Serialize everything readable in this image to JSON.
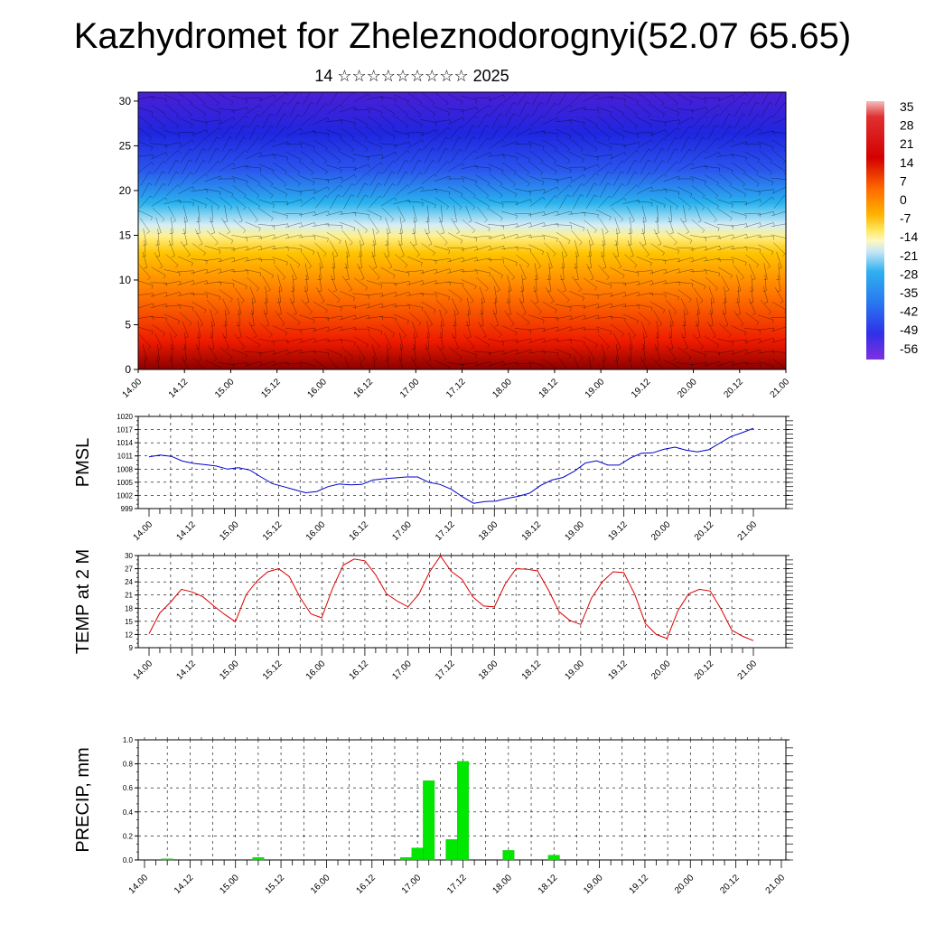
{
  "title": "Kazhydromet for Zheleznodorognyi(52.07 65.65)",
  "subtitle": "14 ☆☆☆☆☆☆☆☆☆ 2025",
  "time_labels": [
    "14.00",
    "14.12",
    "15.00",
    "15.12",
    "16.00",
    "16.12",
    "17.00",
    "17.12",
    "18.00",
    "18.12",
    "19.00",
    "19.12",
    "20.00",
    "20.12",
    "21.00"
  ],
  "chart_data": [
    {
      "type": "heatmap",
      "name": "vertical-cross-section",
      "x_ticks": [
        "14.00",
        "14.12",
        "15.00",
        "15.12",
        "16.00",
        "16.12",
        "17.00",
        "17.12",
        "18.00",
        "18.12",
        "19.00",
        "19.12",
        "20.00",
        "20.12",
        "21.00"
      ],
      "y_ticks": [
        0,
        5,
        10,
        15,
        20,
        25,
        30
      ],
      "ylim": [
        0,
        31
      ],
      "colorbar_labels": [
        "35",
        "28",
        "21",
        "14",
        "7",
        "0",
        "-7",
        "-14",
        "-21",
        "-28",
        "-35",
        "-42",
        "-49",
        "-56"
      ],
      "colorbar_range": [
        -60,
        38
      ],
      "note": "temperature colour field with wind barbs"
    },
    {
      "type": "line",
      "name": "pmsl",
      "ylabel": "PMSL",
      "ylim": [
        999,
        1020
      ],
      "y_ticks": [
        999,
        1002,
        1005,
        1008,
        1011,
        1014,
        1017,
        1020
      ],
      "color": "#0000cc",
      "values": [
        1010.8,
        1011.2,
        1010.9,
        1009.8,
        1009.3,
        1009.0,
        1008.7,
        1008.0,
        1008.3,
        1007.8,
        1006.2,
        1004.7,
        1004.0,
        1003.3,
        1002.6,
        1002.9,
        1004.0,
        1004.6,
        1004.4,
        1004.5,
        1005.5,
        1005.8,
        1006.0,
        1006.2,
        1006.2,
        1005.0,
        1004.5,
        1003.4,
        1001.7,
        1000.2,
        1000.6,
        1000.7,
        1001.3,
        1001.8,
        1002.5,
        1004.3,
        1005.5,
        1006.1,
        1007.5,
        1009.4,
        1009.9,
        1008.9,
        1008.9,
        1010.5,
        1011.6,
        1011.7,
        1012.5,
        1013.0,
        1012.3,
        1011.9,
        1012.4,
        1013.9,
        1015.4,
        1016.3,
        1017.3
      ],
      "x_range": [
        0,
        168
      ]
    },
    {
      "type": "line",
      "name": "temp-2m",
      "ylabel": "TEMP at 2 M",
      "ylim": [
        9,
        30
      ],
      "y_ticks": [
        9,
        12,
        15,
        18,
        21,
        24,
        27,
        30
      ],
      "color": "#dd0000",
      "values": [
        12.2,
        16.9,
        19.4,
        22.3,
        21.7,
        20.6,
        18.5,
        16.6,
        14.9,
        21.1,
        24.2,
        26.3,
        27.0,
        25.2,
        20.4,
        16.7,
        15.8,
        22.5,
        27.8,
        29.2,
        28.8,
        25.6,
        21.3,
        19.6,
        18.3,
        21.2,
        26.3,
        29.9,
        26.4,
        24.6,
        20.6,
        18.5,
        18.3,
        23.5,
        27.0,
        26.9,
        26.5,
        22.2,
        17.2,
        15.2,
        14.3,
        20.3,
        24.0,
        26.3,
        26.1,
        21.2,
        14.5,
        12.0,
        11.1,
        17.4,
        21.3,
        22.3,
        21.9,
        17.8,
        13.0,
        11.6,
        10.6
      ],
      "x_range": [
        0,
        168
      ]
    },
    {
      "type": "bar",
      "name": "precip",
      "ylabel": "PRECIP, mm",
      "ylim": [
        0,
        1.0
      ],
      "y_ticks": [
        0.0,
        0.2,
        0.4,
        0.6,
        0.8,
        1.0
      ],
      "color": "#00e800",
      "bars": [
        {
          "t": 6,
          "v": 0.01
        },
        {
          "t": 30,
          "v": 0.02
        },
        {
          "t": 69,
          "v": 0.02
        },
        {
          "t": 72,
          "v": 0.1
        },
        {
          "t": 75,
          "v": 0.66
        },
        {
          "t": 81,
          "v": 0.17
        },
        {
          "t": 84,
          "v": 0.82
        },
        {
          "t": 96,
          "v": 0.08
        },
        {
          "t": 108,
          "v": 0.04
        }
      ],
      "x_range": [
        0,
        168
      ]
    }
  ]
}
